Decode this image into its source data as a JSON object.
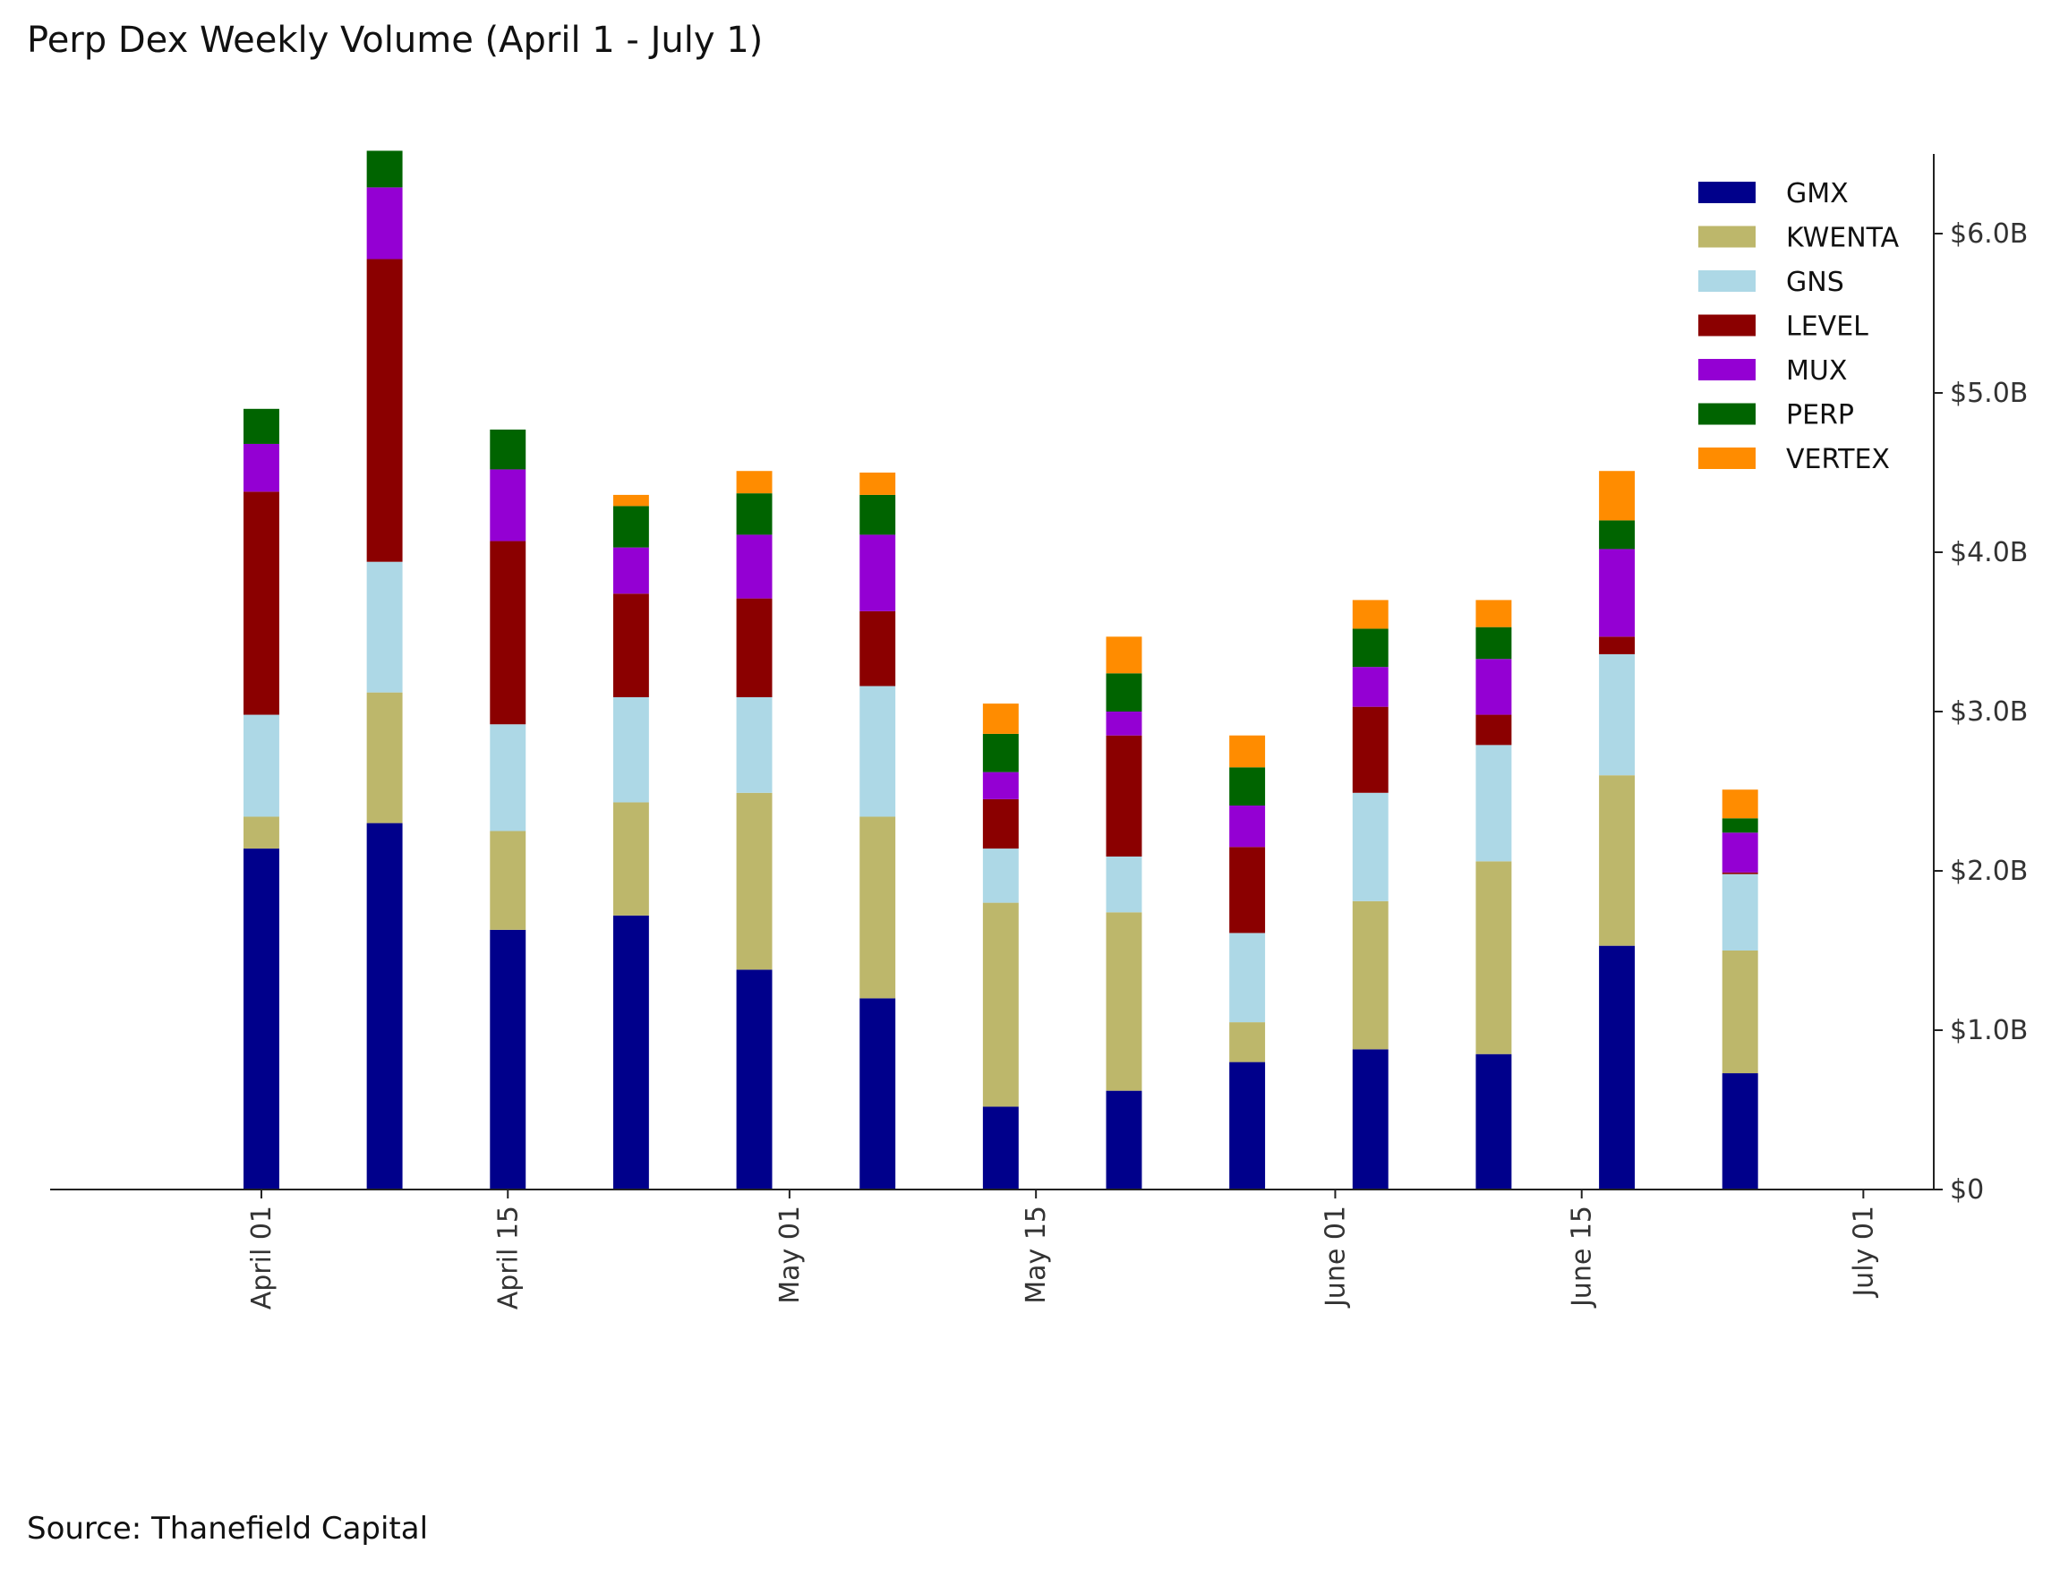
{
  "title": "Perp Dex Weekly Volume (April 1 - July 1)",
  "source": "Source: Thanefield Capital",
  "chart_data": {
    "type": "bar",
    "stacked": true,
    "title": "Perp Dex Weekly Volume (April 1 - July 1)",
    "x": [
      "2023-04-01",
      "2023-04-08",
      "2023-04-15",
      "2023-04-22",
      "2023-04-29",
      "2023-05-06",
      "2023-05-13",
      "2023-05-20",
      "2023-05-27",
      "2023-06-03",
      "2023-06-10",
      "2023-06-17",
      "2023-06-24"
    ],
    "x_ticks": [
      {
        "date": "2023-04-01",
        "label": "April 01"
      },
      {
        "date": "2023-04-15",
        "label": "April 15"
      },
      {
        "date": "2023-05-01",
        "label": "May 01"
      },
      {
        "date": "2023-05-15",
        "label": "May 15"
      },
      {
        "date": "2023-06-01",
        "label": "June 01"
      },
      {
        "date": "2023-06-15",
        "label": "June 15"
      },
      {
        "date": "2023-07-01",
        "label": "July 01"
      }
    ],
    "x_range": [
      "2023-03-20",
      "2023-07-05"
    ],
    "y_unit": "billion USD",
    "ylim": [
      0,
      6.5
    ],
    "y_ticks": [
      {
        "value": 0,
        "label": "$0"
      },
      {
        "value": 1,
        "label": "$1.0B"
      },
      {
        "value": 2,
        "label": "$2.0B"
      },
      {
        "value": 3,
        "label": "$3.0B"
      },
      {
        "value": 4,
        "label": "$4.0B"
      },
      {
        "value": 5,
        "label": "$5.0B"
      },
      {
        "value": 6,
        "label": "$6.0B"
      }
    ],
    "y_axis_side": "right",
    "grid": false,
    "legend": "top-right",
    "series": [
      {
        "name": "GMX",
        "color": "#00008b",
        "values": [
          2.14,
          2.3,
          1.63,
          1.72,
          1.38,
          1.2,
          0.52,
          0.62,
          0.8,
          0.88,
          0.85,
          1.53,
          0.73
        ]
      },
      {
        "name": "KWENTA",
        "color": "#bdb76b",
        "values": [
          0.2,
          0.82,
          0.62,
          0.71,
          1.11,
          1.14,
          1.28,
          1.12,
          0.25,
          0.93,
          1.21,
          1.07,
          0.77
        ]
      },
      {
        "name": "GNS",
        "color": "#add8e6",
        "values": [
          0.64,
          0.82,
          0.67,
          0.66,
          0.6,
          0.82,
          0.34,
          0.35,
          0.56,
          0.68,
          0.73,
          0.76,
          0.48
        ]
      },
      {
        "name": "LEVEL",
        "color": "#8b0000",
        "values": [
          1.4,
          1.9,
          1.15,
          0.65,
          0.62,
          0.47,
          0.31,
          0.76,
          0.54,
          0.54,
          0.19,
          0.11,
          0.01
        ]
      },
      {
        "name": "MUX",
        "color": "#9400d3",
        "values": [
          0.3,
          0.45,
          0.45,
          0.29,
          0.4,
          0.48,
          0.17,
          0.15,
          0.26,
          0.25,
          0.35,
          0.55,
          0.25
        ]
      },
      {
        "name": "PERP",
        "color": "#006400",
        "values": [
          0.22,
          0.23,
          0.25,
          0.26,
          0.26,
          0.25,
          0.24,
          0.24,
          0.24,
          0.24,
          0.2,
          0.18,
          0.09
        ]
      },
      {
        "name": "VERTEX",
        "color": "#ff8c00",
        "values": [
          0.0,
          0.0,
          0.0,
          0.07,
          0.14,
          0.14,
          0.19,
          0.23,
          0.2,
          0.18,
          0.17,
          0.31,
          0.18
        ]
      }
    ]
  }
}
